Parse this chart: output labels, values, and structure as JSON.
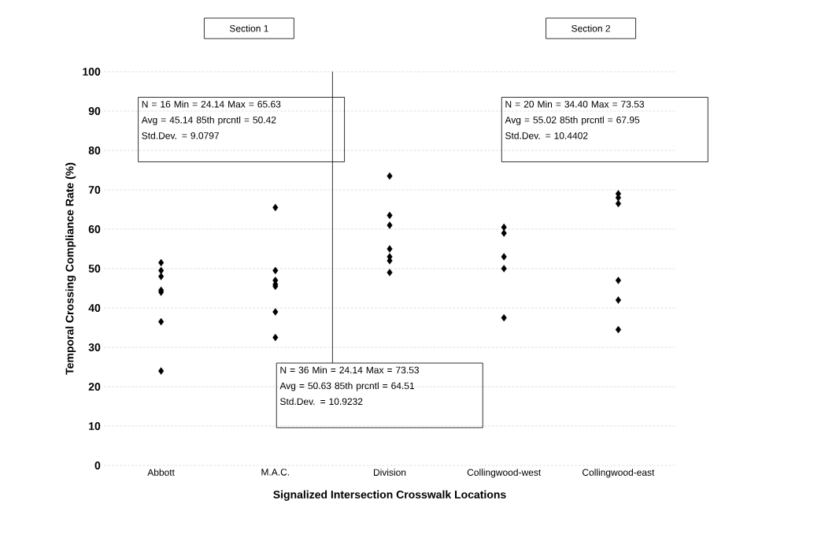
{
  "chart_data": {
    "type": "scatter",
    "xlabel": "Signalized Intersection Crosswalk Locations",
    "ylabel": "Temporal Crossing Compliance Rate (%)",
    "categories": [
      "Abbott",
      "M.A.C.",
      "Division",
      "Collingwood-west",
      "Collingwood-east"
    ],
    "series": [
      {
        "color": "#000000",
        "x": [
          "Abbott",
          "Abbott",
          "Abbott",
          "Abbott",
          "Abbott",
          "Abbott",
          "Abbott",
          "M.A.C.",
          "M.A.C.",
          "M.A.C.",
          "M.A.C.",
          "M.A.C.",
          "M.A.C.",
          "M.A.C.",
          "Division",
          "Division",
          "Division",
          "Division",
          "Division",
          "Division",
          "Division",
          "Collingwood-west",
          "Collingwood-west",
          "Collingwood-west",
          "Collingwood-west",
          "Collingwood-west",
          "Collingwood-east",
          "Collingwood-east",
          "Collingwood-east",
          "Collingwood-east",
          "Collingwood-east",
          "Collingwood-east"
        ],
        "values": [
          51.5,
          49.5,
          48,
          44.5,
          44,
          36.5,
          24,
          65.5,
          49.5,
          47,
          46,
          45.5,
          39,
          32.5,
          73.5,
          63.5,
          61,
          55,
          53,
          52,
          49,
          60.5,
          59,
          53,
          50,
          37.5,
          69,
          68,
          66.5,
          47,
          42,
          34.5
        ]
      }
    ],
    "ylim": [
      0,
      100
    ],
    "yticks": [
      0,
      10,
      20,
      30,
      40,
      50,
      60,
      70,
      80,
      90,
      100
    ],
    "grid": "y",
    "marker": "diamond",
    "annotations": [
      "Section 1",
      "Section 2",
      "N = 16   Min = 24.14   Max = 65.63",
      "Avg = 45.14   85th prcntl = 50.42",
      "Std.Dev. = 9.0797",
      "N = 20   Min = 34.40   Max = 73.53",
      "Avg = 55.02   85th prcntl = 67.95",
      "Std.Dev. = 10.4402",
      "N = 36   Min = 24.14   Max = 73.53",
      "Avg = 50.63   85th prcntl = 64.51",
      "Std.Dev. = 10.9232"
    ]
  }
}
